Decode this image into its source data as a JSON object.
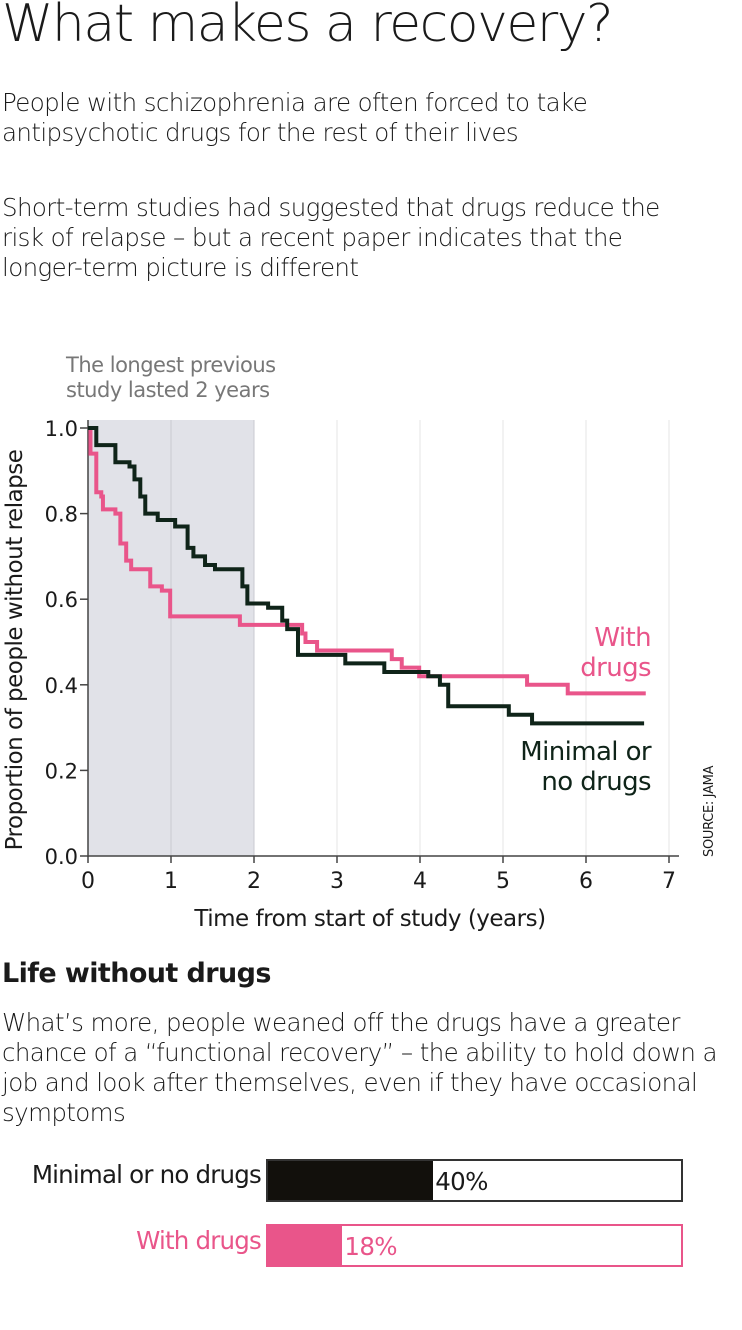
{
  "title": "What makes a recovery?",
  "intro_1": "People with schizophrenia are often forced to take antipsychotic drugs for the rest of their lives",
  "intro_2": "Short-term studies had suggested that drugs reduce the risk of relapse – but a recent paper indicates that  the longer-term picture is different",
  "source": "SOURCE: JAMA",
  "colors": {
    "pink": "#e9558a",
    "dark": "#0f2419",
    "shade": "#e1e2e8",
    "bar_dark": "#12100c"
  },
  "chart_data": [
    {
      "type": "line",
      "step": true,
      "xlabel": "Time from start of study (years)",
      "ylabel": "Proportion of people without relapse",
      "xlim": [
        0,
        7
      ],
      "ylim": [
        0,
        1.0
      ],
      "xticks": [
        "0",
        "1",
        "2",
        "3",
        "4",
        "5",
        "6",
        "7"
      ],
      "yticks": [
        "0.0",
        "0.2",
        "0.4",
        "0.6",
        "0.8",
        "1.0"
      ],
      "shaded_region": {
        "from": 0,
        "to": 2,
        "annotation": "The longest previous study lasted 2 years"
      },
      "series": [
        {
          "name": "With drugs",
          "label_lines": [
            "With",
            "drugs"
          ],
          "color": "#e9558a",
          "points": [
            [
              0,
              1.0
            ],
            [
              0.03,
              0.94
            ],
            [
              0.1,
              0.85
            ],
            [
              0.16,
              0.84
            ],
            [
              0.18,
              0.81
            ],
            [
              0.33,
              0.8
            ],
            [
              0.39,
              0.73
            ],
            [
              0.46,
              0.69
            ],
            [
              0.52,
              0.67
            ],
            [
              0.75,
              0.63
            ],
            [
              0.89,
              0.62
            ],
            [
              0.99,
              0.56
            ],
            [
              1.83,
              0.54
            ],
            [
              2.58,
              0.52
            ],
            [
              2.62,
              0.5
            ],
            [
              2.76,
              0.48
            ],
            [
              3.66,
              0.46
            ],
            [
              3.78,
              0.44
            ],
            [
              3.99,
              0.42
            ],
            [
              5.29,
              0.4
            ],
            [
              5.78,
              0.38
            ],
            [
              6.72,
              0.38
            ]
          ]
        },
        {
          "name": "Minimal or no drugs",
          "label_lines": [
            "Minimal or",
            "no drugs"
          ],
          "color": "#0f2419",
          "points": [
            [
              0,
              1.0
            ],
            [
              0.1,
              0.96
            ],
            [
              0.33,
              0.92
            ],
            [
              0.5,
              0.91
            ],
            [
              0.56,
              0.88
            ],
            [
              0.63,
              0.84
            ],
            [
              0.69,
              0.8
            ],
            [
              0.84,
              0.785
            ],
            [
              1.05,
              0.77
            ],
            [
              1.2,
              0.72
            ],
            [
              1.27,
              0.7
            ],
            [
              1.41,
              0.68
            ],
            [
              1.53,
              0.67
            ],
            [
              1.86,
              0.63
            ],
            [
              1.92,
              0.59
            ],
            [
              2.17,
              0.58
            ],
            [
              2.34,
              0.55
            ],
            [
              2.4,
              0.53
            ],
            [
              2.53,
              0.47
            ],
            [
              3.1,
              0.45
            ],
            [
              3.57,
              0.43
            ],
            [
              4.1,
              0.42
            ],
            [
              4.24,
              0.4
            ],
            [
              4.34,
              0.35
            ],
            [
              5.07,
              0.33
            ],
            [
              5.35,
              0.31
            ],
            [
              6.7,
              0.31
            ]
          ]
        }
      ]
    },
    {
      "type": "bar",
      "title": "Life without drugs",
      "categories": [
        "Minimal or no drugs",
        "With drugs"
      ],
      "values": [
        40,
        18
      ],
      "value_labels": [
        "40%",
        "18%"
      ],
      "max": 100
    }
  ],
  "section_title": "Life without drugs",
  "section_text": "What’s more, people weaned off the drugs have a greater chance of a “functional recovery” – the ability to hold down a job and look after themselves, even if they have occasional symptoms"
}
